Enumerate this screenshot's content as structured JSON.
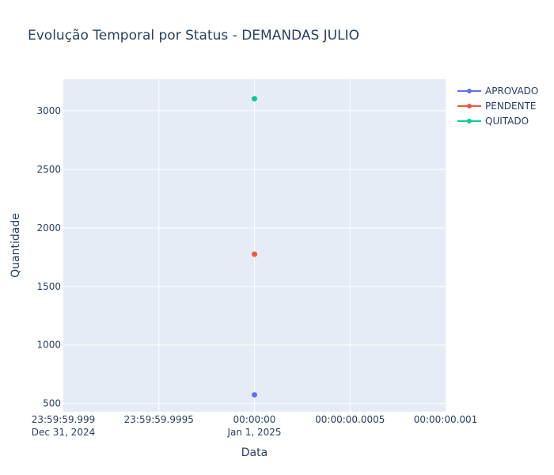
{
  "chart_data": {
    "type": "line",
    "title": "Evolução Temporal por Status - DEMANDAS JULIO",
    "xlabel": "Data",
    "ylabel": "Quantidade",
    "x_tick_labels": [
      {
        "line1": "23:59:59.999",
        "line2": "Dec 31, 2024"
      },
      {
        "line1": "23:59:59.9995",
        "line2": ""
      },
      {
        "line1": "00:00:00",
        "line2": "Jan 1, 2025"
      },
      {
        "line1": "00:00:00.0005",
        "line2": ""
      },
      {
        "line1": "00:00:00.001",
        "line2": ""
      }
    ],
    "y_ticks": [
      500,
      1000,
      1500,
      2000,
      2500,
      3000
    ],
    "ylim": [
      430,
      3270
    ],
    "x": [
      "2025-01-01 00:00:00"
    ],
    "series": [
      {
        "name": "APROVADO",
        "color": "#636efa",
        "values": [
          574
        ]
      },
      {
        "name": "PENDENTE",
        "color": "#ef553b",
        "values": [
          1775
        ]
      },
      {
        "name": "QUITADO",
        "color": "#00cc96",
        "values": [
          3103
        ]
      }
    ],
    "grid": true,
    "legend_position": "top-right",
    "plot_background": "#e5ecf6"
  }
}
